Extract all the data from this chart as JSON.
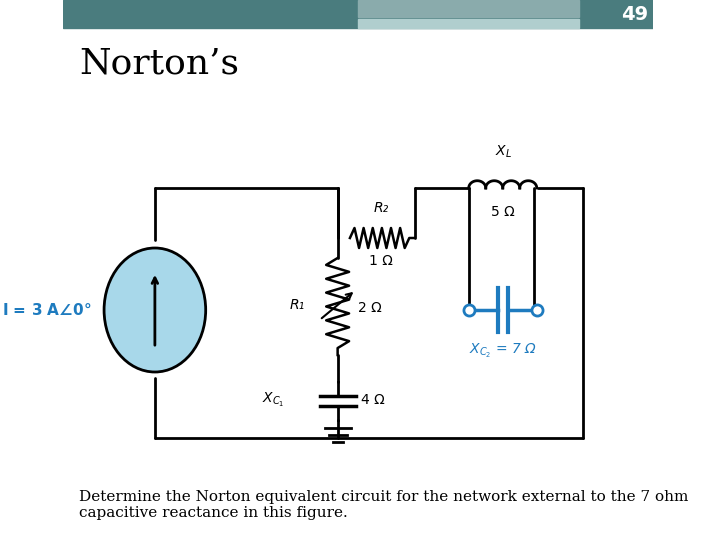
{
  "title": "Norton’s",
  "page_number": "49",
  "description_text": "Determine the Norton equivalent circuit for the network external to the 7 ohm\ncapacitive reactance in this figure.",
  "background_color": "#ffffff",
  "header_bar_color1": "#4a7c7e",
  "header_bar_color2": "#8aabac",
  "title_fontsize": 28,
  "page_num_fontsize": 16,
  "label_I": "I = 3 A∠ 0°",
  "label_R1": "R₁",
  "label_R1_val": "2 Ω",
  "label_R2": "R₂",
  "label_R2_val": "1 Ω",
  "label_XC1": "Xᴄ₁",
  "label_XC1_val": "4 Ω",
  "label_XL": "Xₗ",
  "label_XL_val": "5 Ω",
  "label_XC2": "Xᴄ₂ = 7 Ω",
  "current_source_color": "#a8d8ea",
  "xc2_color": "#1e7bbf",
  "wire_color": "#000000",
  "component_color": "#000000"
}
